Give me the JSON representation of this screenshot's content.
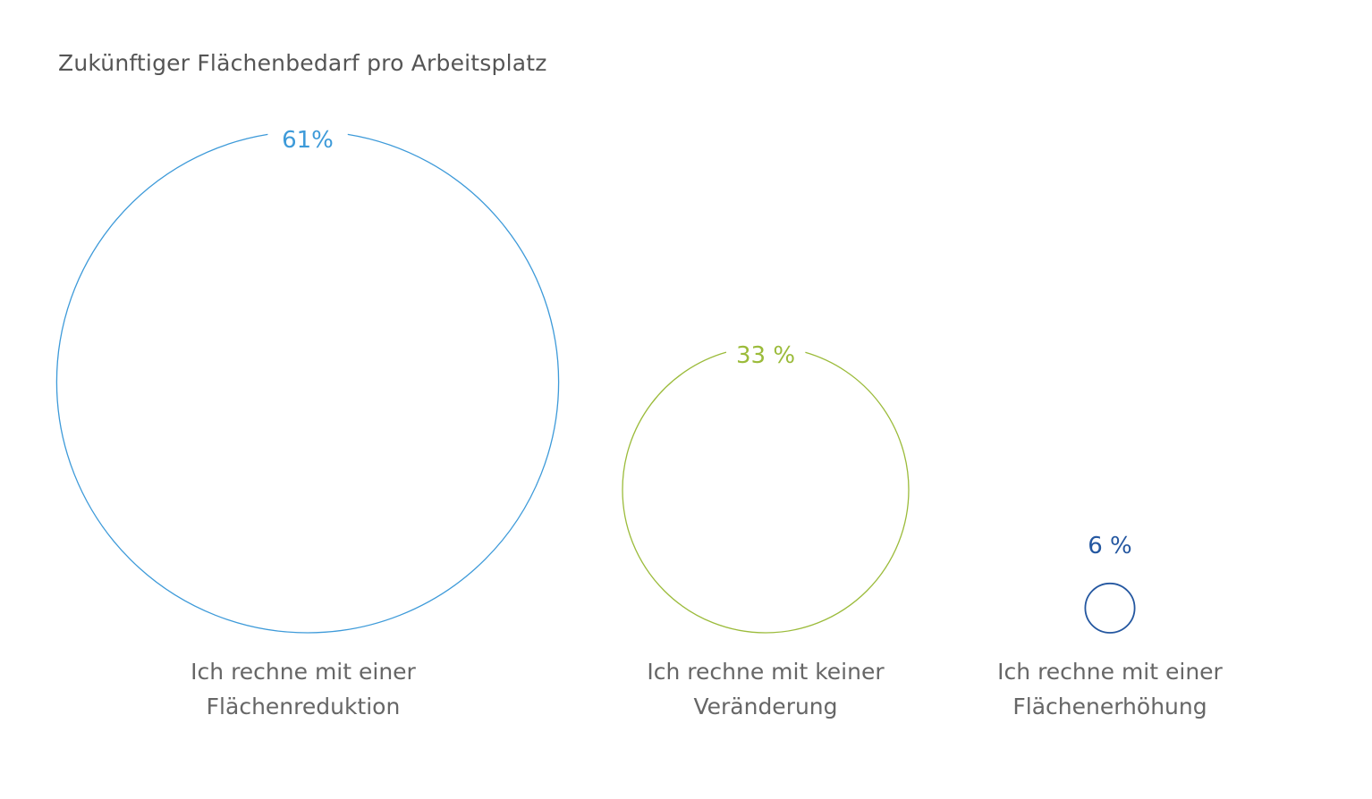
{
  "chart_data": {
    "type": "bubble",
    "title": "Zukünftiger Flächenbedarf pro Arbeitsplatz",
    "unit": "%",
    "series": [
      {
        "name": "Ich rechne mit einer Flächenreduktion",
        "label_lines": [
          "Ich rechne mit einer",
          "Flächenreduktion"
        ],
        "value": 61,
        "value_label": "61%",
        "color": "#3d9ad9"
      },
      {
        "name": "Ich rechne mit keiner Veränderung",
        "label_lines": [
          "Ich rechne mit keiner",
          "Veränderung"
        ],
        "value": 33,
        "value_label": "33 %",
        "color": "#9bbb3a"
      },
      {
        "name": "Ich rechne mit einer Flächenerhöhung",
        "label_lines": [
          "Ich rechne mit einer",
          "Flächenerhöhung"
        ],
        "value": 6,
        "value_label": "6 %",
        "color": "#2457a0"
      }
    ]
  }
}
